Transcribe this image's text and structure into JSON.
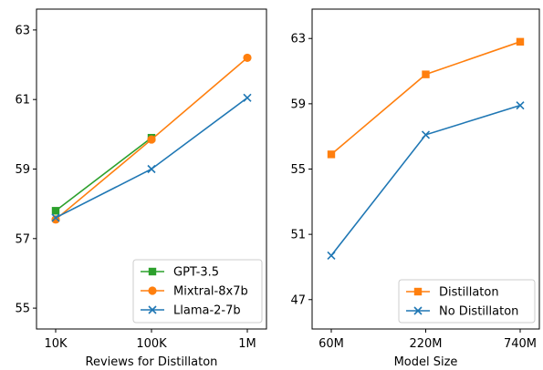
{
  "chart_data": [
    {
      "type": "line",
      "xlabel": "Reviews for Distillaton",
      "ylabel": "",
      "categories": [
        "10K",
        "100K",
        "1M"
      ],
      "ylim": [
        54.4,
        63.6
      ],
      "yticks": [
        55,
        57,
        59,
        61,
        63
      ],
      "legend_position": "lower-right",
      "grid": false,
      "series": [
        {
          "name": "GPT-3.5",
          "color": "#2ca02c",
          "marker": "square",
          "values": [
            57.8,
            59.9,
            null
          ]
        },
        {
          "name": "Mixtral-8x7b",
          "color": "#ff7f0e",
          "marker": "circle",
          "values": [
            57.55,
            59.85,
            62.2
          ]
        },
        {
          "name": "Llama-2-7b",
          "color": "#1f77b4",
          "marker": "x",
          "values": [
            57.6,
            59.0,
            61.05
          ]
        }
      ]
    },
    {
      "type": "line",
      "xlabel": "Model Size",
      "ylabel": "",
      "categories": [
        "60M",
        "220M",
        "740M"
      ],
      "ylim": [
        45.2,
        64.8
      ],
      "yticks": [
        47,
        51,
        55,
        59,
        63
      ],
      "legend_position": "lower-right",
      "grid": false,
      "series": [
        {
          "name": "Distillaton",
          "color": "#ff7f0e",
          "marker": "square",
          "values": [
            55.9,
            60.8,
            62.8
          ]
        },
        {
          "name": "No Distillaton",
          "color": "#1f77b4",
          "marker": "x",
          "values": [
            49.7,
            57.1,
            58.9
          ]
        }
      ]
    }
  ]
}
